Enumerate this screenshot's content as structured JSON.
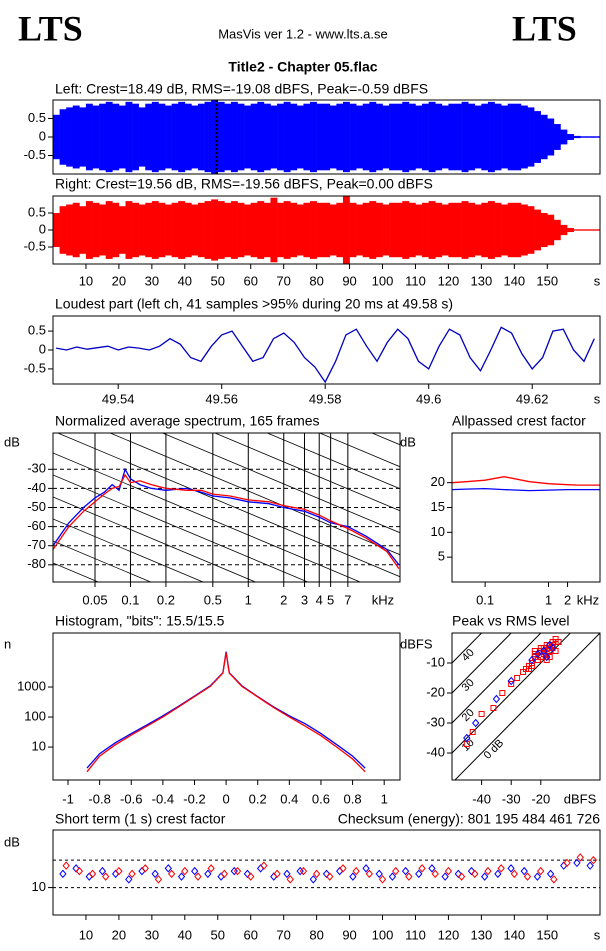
{
  "header": {
    "left_logo": "LTS",
    "right_logo": "LTS",
    "center": "MasVis ver 1.2 - www.lts.a.se",
    "title": "Title2 - Chapter 05.flac"
  },
  "chart_data": [
    {
      "type": "waveform",
      "title": "Left: Crest=18.49 dB, RMS=-19.08 dBFS, Peak=-0.59 dBFS",
      "xlim": [
        0,
        166
      ],
      "ylim": [
        -1,
        1
      ],
      "yticks": [
        0.5,
        0,
        -0.5
      ],
      "marker_x": 49.58,
      "x": [
        0,
        2,
        4,
        6,
        8,
        10,
        12,
        14,
        16,
        18,
        20,
        22,
        24,
        26,
        28,
        30,
        32,
        34,
        36,
        38,
        40,
        42,
        44,
        46,
        48,
        50,
        52,
        54,
        56,
        58,
        60,
        62,
        64,
        66,
        68,
        70,
        72,
        74,
        76,
        78,
        80,
        82,
        84,
        86,
        88,
        90,
        92,
        94,
        96,
        98,
        100,
        102,
        104,
        106,
        108,
        110,
        112,
        114,
        116,
        118,
        120,
        122,
        124,
        126,
        128,
        130,
        132,
        134,
        136,
        138,
        140,
        142,
        144,
        146,
        148,
        150,
        152,
        154,
        156,
        158,
        160,
        162,
        164
      ],
      "series": [
        {
          "color": "#0000ff",
          "values": [
            0.6,
            0.75,
            0.8,
            0.85,
            0.8,
            0.9,
            0.85,
            0.9,
            0.95,
            0.9,
            0.85,
            0.95,
            0.9,
            0.8,
            0.9,
            0.95,
            0.9,
            0.85,
            0.9,
            0.95,
            0.9,
            0.85,
            0.9,
            0.95,
            1,
            0.95,
            0.9,
            0.95,
            0.9,
            0.85,
            0.9,
            0.95,
            0.9,
            0.85,
            0.9,
            0.95,
            0.9,
            0.85,
            0.9,
            0.95,
            0.9,
            0.9,
            0.85,
            0.9,
            0.95,
            0.9,
            0.85,
            0.9,
            0.95,
            0.9,
            0.85,
            0.9,
            0.9,
            0.95,
            0.9,
            0.85,
            0.9,
            0.95,
            0.9,
            0.85,
            0.9,
            0.9,
            0.95,
            0.9,
            0.85,
            0.9,
            0.95,
            0.9,
            0.85,
            0.9,
            0.9,
            0.85,
            0.8,
            0.7,
            0.6,
            0.5,
            0.35,
            0.2,
            0.08,
            0.03,
            0.02,
            0.02,
            0.02
          ]
        }
      ]
    },
    {
      "type": "waveform",
      "title": "Right: Crest=19.56 dB, RMS=-19.56 dBFS, Peak=0.00 dBFS",
      "xlim": [
        0,
        166
      ],
      "ylim": [
        -1,
        1
      ],
      "yticks": [
        0.5,
        0,
        -0.5
      ],
      "xticks": [
        10,
        20,
        30,
        40,
        50,
        60,
        70,
        80,
        90,
        100,
        110,
        120,
        130,
        140,
        150
      ],
      "x_unit": "s",
      "x": [
        0,
        2,
        4,
        6,
        8,
        10,
        12,
        14,
        16,
        18,
        20,
        22,
        24,
        26,
        28,
        30,
        32,
        34,
        36,
        38,
        40,
        42,
        44,
        46,
        48,
        50,
        52,
        54,
        56,
        58,
        60,
        62,
        64,
        66,
        68,
        70,
        72,
        74,
        76,
        78,
        80,
        82,
        84,
        86,
        88,
        90,
        92,
        94,
        96,
        98,
        100,
        102,
        104,
        106,
        108,
        110,
        112,
        114,
        116,
        118,
        120,
        122,
        124,
        126,
        128,
        130,
        132,
        134,
        136,
        138,
        140,
        142,
        144,
        146,
        148,
        150,
        152,
        154,
        156,
        158,
        160,
        162,
        164
      ],
      "series": [
        {
          "color": "#ff0000",
          "values": [
            0.5,
            0.7,
            0.75,
            0.8,
            0.7,
            0.85,
            0.8,
            0.75,
            0.85,
            0.8,
            0.7,
            0.85,
            0.8,
            0.75,
            0.8,
            0.85,
            0.8,
            0.75,
            0.8,
            0.85,
            0.8,
            0.75,
            0.8,
            0.85,
            0.9,
            0.85,
            0.8,
            0.85,
            0.8,
            0.75,
            0.8,
            0.85,
            0.8,
            0.95,
            0.8,
            0.85,
            0.8,
            0.75,
            0.8,
            0.85,
            0.8,
            0.8,
            0.75,
            0.8,
            1,
            0.8,
            0.75,
            0.8,
            0.85,
            0.8,
            0.75,
            0.8,
            0.8,
            0.85,
            0.8,
            0.75,
            0.8,
            0.85,
            0.8,
            0.75,
            0.8,
            0.8,
            0.85,
            0.8,
            0.75,
            0.8,
            0.85,
            0.8,
            0.75,
            0.8,
            0.8,
            0.75,
            0.7,
            0.6,
            0.5,
            0.45,
            0.3,
            0.15,
            0.06,
            0.02,
            0.02,
            0.02,
            0.02
          ]
        }
      ]
    },
    {
      "type": "line",
      "title": "Loudest part (left  ch, 41 samples >95% during 20 ms at 49.58 s)",
      "xlim": [
        49.5274,
        49.6331
      ],
      "ylim": [
        -0.9,
        0.9
      ],
      "yticks": [
        0.5,
        0,
        -0.5
      ],
      "xticks": [
        49.54,
        49.56,
        49.58,
        49.6,
        49.62
      ],
      "x_unit": "s",
      "x": [
        49.528,
        49.53,
        49.532,
        49.534,
        49.536,
        49.538,
        49.54,
        49.542,
        49.544,
        49.546,
        49.548,
        49.55,
        49.552,
        49.554,
        49.556,
        49.558,
        49.56,
        49.562,
        49.564,
        49.566,
        49.568,
        49.57,
        49.572,
        49.574,
        49.576,
        49.578,
        49.58,
        49.582,
        49.584,
        49.586,
        49.588,
        49.59,
        49.592,
        49.594,
        49.596,
        49.598,
        49.6,
        49.602,
        49.604,
        49.606,
        49.608,
        49.61,
        49.612,
        49.614,
        49.616,
        49.618,
        49.62,
        49.622,
        49.624,
        49.626,
        49.628,
        49.63,
        49.632
      ],
      "series": [
        {
          "color": "#0000c0",
          "values": [
            0.05,
            0.0,
            0.08,
            0.02,
            0.06,
            0.1,
            0.0,
            0.08,
            0.05,
            0.0,
            0.1,
            0.3,
            0.15,
            -0.2,
            -0.3,
            0.1,
            0.4,
            0.5,
            0.1,
            -0.3,
            -0.2,
            0.3,
            0.45,
            0.2,
            -0.2,
            -0.45,
            -0.85,
            -0.3,
            0.4,
            0.55,
            0.1,
            -0.3,
            0.2,
            0.55,
            0.3,
            -0.3,
            -0.5,
            0.1,
            0.55,
            0.4,
            -0.2,
            -0.55,
            0.0,
            0.6,
            0.45,
            -0.1,
            -0.5,
            -0.2,
            0.5,
            0.55,
            0.0,
            -0.3,
            0.3
          ]
        }
      ]
    },
    {
      "type": "line",
      "title": "Normalized average spectrum, 165 frames",
      "y_unit": "dB",
      "x_unit": "kHz",
      "xscale": "log",
      "xlim": [
        0.022,
        19.4
      ],
      "ylim": [
        -89,
        -11
      ],
      "xticks": [
        0.05,
        0.1,
        0.2,
        0.5,
        1,
        2,
        3,
        4,
        5,
        7
      ],
      "yticks": [
        -30,
        -40,
        -50,
        -60,
        -70,
        -80
      ],
      "grid": [
        "x",
        "y"
      ],
      "x": [
        0.022,
        0.03,
        0.04,
        0.05,
        0.06,
        0.07,
        0.08,
        0.09,
        0.1,
        0.12,
        0.15,
        0.2,
        0.3,
        0.4,
        0.5,
        0.7,
        1,
        1.5,
        2,
        3,
        4,
        5,
        7,
        10,
        15,
        19
      ],
      "series": [
        {
          "color": "#0000ff",
          "values": [
            -70,
            -58,
            -50,
            -45,
            -42,
            -38,
            -41,
            -30,
            -35,
            -38,
            -40,
            -41,
            -40,
            -42,
            -44,
            -45,
            -47,
            -48,
            -50,
            -52,
            -55,
            -58,
            -60,
            -65,
            -72,
            -80
          ]
        },
        {
          "color": "#ff0000",
          "values": [
            -72,
            -60,
            -52,
            -47,
            -43,
            -40,
            -39,
            -33,
            -37,
            -36,
            -38,
            -40,
            -41,
            -41,
            -43,
            -44,
            -46,
            -47,
            -49,
            -51,
            -54,
            -57,
            -61,
            -66,
            -73,
            -82
          ]
        }
      ]
    },
    {
      "type": "line",
      "title": "Allpassed crest factor",
      "y_unit": "dB",
      "x_unit": "kHz",
      "xscale": "log",
      "xlim": [
        0.03,
        6.5
      ],
      "ylim": [
        0,
        30
      ],
      "xticks": [
        0.1,
        1,
        2
      ],
      "yticks": [
        20,
        15,
        10,
        5
      ],
      "x": [
        0.03,
        0.05,
        0.1,
        0.2,
        0.5,
        1,
        2,
        3,
        6.5
      ],
      "series": [
        {
          "color": "#ff0000",
          "values": [
            20,
            20.2,
            20.5,
            21.2,
            20.2,
            19.8,
            19.6,
            19.5,
            19.5
          ]
        },
        {
          "color": "#0000ff",
          "values": [
            18.6,
            18.7,
            18.8,
            18.6,
            18.4,
            18.5,
            18.6,
            18.6,
            18.6
          ]
        }
      ]
    },
    {
      "type": "line",
      "title": "Histogram, \"bits\": 15.5/15.5",
      "y_unit": "n",
      "yscale": "log",
      "xlim": [
        -1.095,
        1.1
      ],
      "ylim": [
        0.8,
        63000
      ],
      "xticks": [
        -1,
        -0.8,
        -0.6,
        -0.4,
        -0.2,
        0,
        0.2,
        0.4,
        0.6,
        0.8,
        1
      ],
      "yticks": [
        1000,
        100,
        10
      ],
      "x": [
        -0.88,
        -0.8,
        -0.7,
        -0.6,
        -0.5,
        -0.4,
        -0.3,
        -0.2,
        -0.1,
        -0.02,
        0,
        0.02,
        0.1,
        0.2,
        0.3,
        0.4,
        0.5,
        0.6,
        0.7,
        0.8,
        0.88
      ],
      "series": [
        {
          "color": "#0000ff",
          "values": [
            2,
            6,
            14,
            28,
            55,
            110,
            230,
            500,
            1100,
            3000,
            15000,
            3000,
            1100,
            480,
            220,
            110,
            60,
            28,
            12,
            5,
            2
          ]
        },
        {
          "color": "#ff0000",
          "values": [
            1.5,
            5,
            12,
            25,
            50,
            100,
            220,
            480,
            1050,
            2900,
            14000,
            2900,
            1050,
            470,
            210,
            100,
            50,
            24,
            10,
            4,
            1.5
          ]
        }
      ]
    },
    {
      "type": "scatter",
      "title": "Peak vs RMS level",
      "y_unit": "dBFS",
      "x_unit": "dBFS",
      "xlim": [
        -50,
        0
      ],
      "ylim": [
        -49,
        0
      ],
      "xticks": [
        -40,
        -30,
        -20
      ],
      "yticks": [
        -10,
        -20,
        -30,
        -40
      ],
      "diagonals": [
        40,
        30,
        20,
        10,
        0
      ],
      "diagonal_labels": [
        "40",
        "30",
        "20",
        "10",
        "0 dB"
      ],
      "series": [
        {
          "color": "#ff0000",
          "marker": "square",
          "x": [
            -22,
            -20,
            -18,
            -17,
            -16,
            -15,
            -19,
            -21,
            -23,
            -24,
            -18,
            -17,
            -16,
            -20,
            -22,
            -19,
            -15,
            -14,
            -17,
            -18,
            -21,
            -25,
            -26,
            -23,
            -20,
            -16,
            -19,
            -24,
            -28,
            -30,
            -33,
            -36,
            -40,
            -43,
            -45,
            -17,
            -15,
            -18,
            -22,
            -20
          ],
          "values": [
            -8,
            -6,
            -5,
            -4,
            -3,
            -3,
            -7,
            -9,
            -10,
            -11,
            -4,
            -6,
            -5,
            -8,
            -7,
            -6,
            -2,
            -3,
            -5,
            -7,
            -9,
            -12,
            -13,
            -11,
            -8,
            -4,
            -5,
            -12,
            -15,
            -17,
            -20,
            -25,
            -27,
            -33,
            -37,
            -8,
            -6,
            -9,
            -6,
            -5
          ]
        },
        {
          "color": "#0000ff",
          "marker": "diamond",
          "x": [
            -21,
            -19,
            -17,
            -16,
            -23,
            -30,
            -35,
            -42,
            -45,
            -18
          ],
          "values": [
            -7,
            -6,
            -4,
            -5,
            -9,
            -16,
            -22,
            -30,
            -35,
            -8
          ]
        }
      ]
    },
    {
      "type": "scatter",
      "title": "Short term (1 s) crest factor",
      "subtitle": "Checksum (energy):  801 195 484 461 726",
      "y_unit": "dB",
      "x_unit": "s",
      "xlim": [
        0,
        166
      ],
      "ylim": [
        0,
        31
      ],
      "xticks": [
        10,
        20,
        30,
        40,
        50,
        60,
        70,
        80,
        90,
        100,
        110,
        120,
        130,
        140,
        150
      ],
      "yticks": [
        10
      ],
      "dashed_lines": [
        10,
        20
      ],
      "series": [
        {
          "color": "#0000ff",
          "marker": "diamond",
          "x": [
            3,
            7,
            11,
            15,
            19,
            23,
            27,
            31,
            35,
            39,
            43,
            47,
            51,
            55,
            59,
            63,
            67,
            71,
            75,
            79,
            83,
            87,
            91,
            95,
            99,
            103,
            107,
            111,
            115,
            119,
            123,
            127,
            131,
            135,
            139,
            143,
            147,
            151,
            155,
            159,
            163
          ],
          "values": [
            15,
            17,
            14,
            16,
            15,
            13,
            16,
            15,
            17,
            14,
            16,
            15,
            14,
            16,
            15,
            17,
            14,
            15,
            16,
            13,
            15,
            16,
            14,
            17,
            15,
            14,
            16,
            15,
            17,
            14,
            15,
            16,
            14,
            15,
            17,
            16,
            14,
            15,
            18,
            19,
            18
          ]
        },
        {
          "color": "#ff0000",
          "marker": "diamond",
          "x": [
            4,
            8,
            12,
            16,
            20,
            24,
            28,
            32,
            36,
            40,
            44,
            48,
            52,
            56,
            60,
            64,
            68,
            72,
            76,
            80,
            84,
            88,
            92,
            96,
            100,
            104,
            108,
            112,
            116,
            120,
            124,
            128,
            132,
            136,
            140,
            144,
            148,
            152,
            156,
            160,
            164
          ],
          "values": [
            18,
            16,
            15,
            14,
            16,
            15,
            17,
            13,
            15,
            16,
            14,
            17,
            15,
            16,
            14,
            18,
            15,
            13,
            16,
            15,
            14,
            17,
            16,
            15,
            13,
            16,
            14,
            17,
            15,
            16,
            14,
            15,
            16,
            17,
            15,
            14,
            16,
            13,
            19,
            21,
            20
          ]
        }
      ]
    }
  ]
}
